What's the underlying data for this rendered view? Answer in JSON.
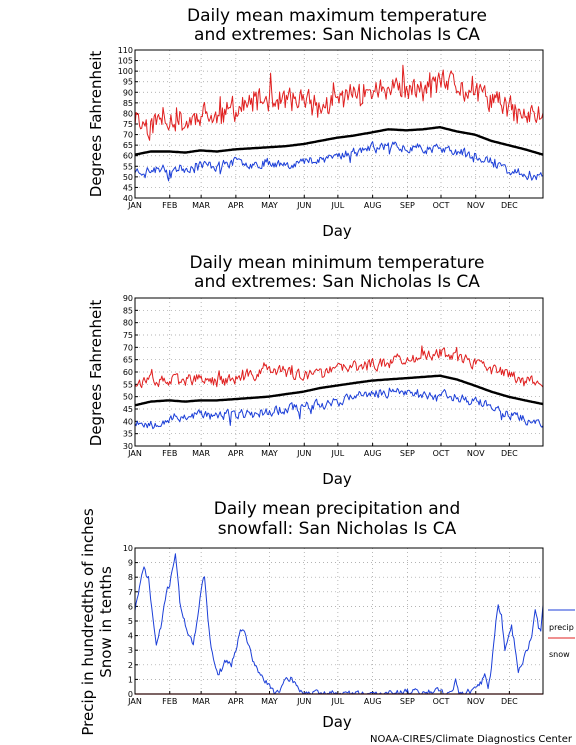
{
  "credit": "NOAA-CIRES/Climate Diagnostics Center",
  "months": [
    "JAN",
    "FEB",
    "MAR",
    "APR",
    "MAY",
    "JUN",
    "JUL",
    "AUG",
    "SEP",
    "OCT",
    "NOV",
    "DEC"
  ],
  "colors": {
    "mean": "#000000",
    "max_extreme": "#e02020",
    "min_extreme": "#1c3fd8",
    "precip": "#1c3fd8",
    "snow": "#e02020",
    "grid": "#9a9a9a"
  },
  "chart_data": [
    {
      "type": "line",
      "title_line1": "Daily mean maximum temperature",
      "title_line2": "and extremes: San Nicholas Is CA",
      "xlabel": "Day",
      "ylabel": "Degrees Fahrenheit",
      "ylim": [
        40,
        110
      ],
      "yticks": [
        40,
        45,
        50,
        55,
        60,
        65,
        70,
        75,
        80,
        85,
        90,
        95,
        100,
        105,
        110
      ],
      "grid": true,
      "series": [
        {
          "key": "high",
          "kind": "extreme-high",
          "anchors": [
            [
              1,
              77
            ],
            [
              15,
              74
            ],
            [
              31,
              79
            ],
            [
              46,
              75
            ],
            [
              59,
              80
            ],
            [
              74,
              77
            ],
            [
              90,
              82
            ],
            [
              105,
              84
            ],
            [
              120,
              87
            ],
            [
              135,
              86
            ],
            [
              151,
              86
            ],
            [
              166,
              82
            ],
            [
              181,
              86
            ],
            [
              196,
              89
            ],
            [
              212,
              91
            ],
            [
              227,
              91
            ],
            [
              243,
              90
            ],
            [
              258,
              91
            ],
            [
              273,
              94
            ],
            [
              288,
              93
            ],
            [
              304,
              88
            ],
            [
              319,
              87
            ],
            [
              334,
              82
            ],
            [
              349,
              78
            ],
            [
              365,
              80
            ]
          ],
          "amp": 5.5,
          "seed": 11
        },
        {
          "key": "mean",
          "kind": "mean",
          "anchors": [
            [
              1,
              60.5
            ],
            [
              15,
              62
            ],
            [
              31,
              62
            ],
            [
              46,
              61.5
            ],
            [
              59,
              62.5
            ],
            [
              74,
              62
            ],
            [
              90,
              63
            ],
            [
              105,
              63.5
            ],
            [
              120,
              64
            ],
            [
              135,
              64.5
            ],
            [
              151,
              65.5
            ],
            [
              166,
              67
            ],
            [
              181,
              68.5
            ],
            [
              196,
              69.5
            ],
            [
              212,
              71
            ],
            [
              227,
              72.5
            ],
            [
              243,
              72
            ],
            [
              258,
              72.5
            ],
            [
              273,
              73.5
            ],
            [
              288,
              71.5
            ],
            [
              304,
              70
            ],
            [
              319,
              67
            ],
            [
              334,
              65
            ],
            [
              349,
              63
            ],
            [
              365,
              60.5
            ]
          ],
          "amp": 0,
          "seed": 0
        },
        {
          "key": "low",
          "kind": "extreme-low",
          "anchors": [
            [
              1,
              53
            ],
            [
              15,
              53
            ],
            [
              31,
              54
            ],
            [
              46,
              54
            ],
            [
              59,
              56
            ],
            [
              74,
              55
            ],
            [
              90,
              57
            ],
            [
              105,
              56
            ],
            [
              120,
              57
            ],
            [
              135,
              56
            ],
            [
              151,
              57
            ],
            [
              166,
              59
            ],
            [
              181,
              60
            ],
            [
              196,
              62
            ],
            [
              212,
              64
            ],
            [
              227,
              65
            ],
            [
              243,
              64
            ],
            [
              258,
              64
            ],
            [
              273,
              63
            ],
            [
              288,
              62
            ],
            [
              304,
              60
            ],
            [
              319,
              57
            ],
            [
              334,
              53
            ],
            [
              349,
              51
            ],
            [
              365,
              52
            ]
          ],
          "amp": 2.0,
          "seed": 23
        }
      ]
    },
    {
      "type": "line",
      "title_line1": "Daily mean minimum temperature",
      "title_line2": "and extremes: San Nicholas Is CA",
      "xlabel": "Day",
      "ylabel": "Degrees Fahrenheit",
      "ylim": [
        30,
        90
      ],
      "yticks": [
        30,
        35,
        40,
        45,
        50,
        55,
        60,
        65,
        70,
        75,
        80,
        85,
        90
      ],
      "grid": true,
      "series": [
        {
          "key": "high",
          "kind": "extreme-high",
          "anchors": [
            [
              1,
              56
            ],
            [
              15,
              56
            ],
            [
              31,
              56
            ],
            [
              46,
              57
            ],
            [
              59,
              57
            ],
            [
              74,
              56
            ],
            [
              90,
              57
            ],
            [
              105,
              58
            ],
            [
              120,
              62
            ],
            [
              135,
              60
            ],
            [
              151,
              58
            ],
            [
              166,
              59
            ],
            [
              181,
              61
            ],
            [
              196,
              62
            ],
            [
              212,
              63
            ],
            [
              227,
              64
            ],
            [
              243,
              65
            ],
            [
              258,
              66
            ],
            [
              273,
              68
            ],
            [
              288,
              66
            ],
            [
              304,
              63
            ],
            [
              319,
              61
            ],
            [
              334,
              59
            ],
            [
              349,
              57
            ],
            [
              365,
              55
            ]
          ],
          "amp": 2.2,
          "seed": 37
        },
        {
          "key": "mean",
          "kind": "mean",
          "anchors": [
            [
              1,
              46.5
            ],
            [
              15,
              48
            ],
            [
              31,
              48.5
            ],
            [
              46,
              48
            ],
            [
              59,
              48.5
            ],
            [
              74,
              48.5
            ],
            [
              90,
              49
            ],
            [
              105,
              49.5
            ],
            [
              120,
              50
            ],
            [
              135,
              51
            ],
            [
              151,
              52
            ],
            [
              166,
              53.5
            ],
            [
              181,
              54.5
            ],
            [
              196,
              55.5
            ],
            [
              212,
              56.5
            ],
            [
              227,
              57
            ],
            [
              243,
              57.5
            ],
            [
              258,
              58
            ],
            [
              273,
              58.5
            ],
            [
              288,
              57
            ],
            [
              304,
              54.5
            ],
            [
              319,
              52
            ],
            [
              334,
              50
            ],
            [
              349,
              48.5
            ],
            [
              365,
              47
            ]
          ],
          "amp": 0,
          "seed": 0
        },
        {
          "key": "low",
          "kind": "extreme-low",
          "anchors": [
            [
              1,
              40
            ],
            [
              15,
              39
            ],
            [
              31,
              41
            ],
            [
              46,
              42
            ],
            [
              59,
              43
            ],
            [
              74,
              42
            ],
            [
              90,
              43
            ],
            [
              105,
              43
            ],
            [
              120,
              44
            ],
            [
              135,
              45
            ],
            [
              151,
              46
            ],
            [
              166,
              47
            ],
            [
              181,
              48
            ],
            [
              196,
              50
            ],
            [
              212,
              51
            ],
            [
              227,
              52
            ],
            [
              243,
              52
            ],
            [
              258,
              51
            ],
            [
              273,
              51
            ],
            [
              288,
              50
            ],
            [
              304,
              48
            ],
            [
              319,
              46
            ],
            [
              334,
              43
            ],
            [
              349,
              41
            ],
            [
              365,
              38
            ]
          ],
          "amp": 1.8,
          "seed": 53
        }
      ]
    },
    {
      "type": "line",
      "title_line1": "Daily mean precipitation and",
      "title_line2": "snowfall: San Nicholas Is CA",
      "xlabel": "Day",
      "ylabel_line1": "Precip in hundredths of inches",
      "ylabel_line2": "Snow in tenths",
      "ylim": [
        0,
        10
      ],
      "yticks": [
        0,
        1,
        2,
        3,
        4,
        5,
        6,
        7,
        8,
        9,
        10
      ],
      "grid": true,
      "legend": "right",
      "series": [
        {
          "name": "precip",
          "key": "precip",
          "kind": "precip",
          "anchors": [
            [
              1,
              5.8
            ],
            [
              5,
              7.3
            ],
            [
              9,
              8.6
            ],
            [
              13,
              7.9
            ],
            [
              17,
              5.2
            ],
            [
              20,
              3.3
            ],
            [
              24,
              4.5
            ],
            [
              28,
              6.6
            ],
            [
              32,
              7.6
            ],
            [
              37,
              9.7
            ],
            [
              41,
              6.3
            ],
            [
              45,
              5.0
            ],
            [
              49,
              4.1
            ],
            [
              53,
              3.4
            ],
            [
              57,
              5.1
            ],
            [
              61,
              7.8
            ],
            [
              63,
              8.2
            ],
            [
              67,
              4.4
            ],
            [
              71,
              2.3
            ],
            [
              75,
              1.4
            ],
            [
              79,
              1.8
            ],
            [
              83,
              2.4
            ],
            [
              87,
              2.0
            ],
            [
              91,
              3.1
            ],
            [
              95,
              4.6
            ],
            [
              99,
              4.1
            ],
            [
              103,
              3.2
            ],
            [
              107,
              2.1
            ],
            [
              111,
              1.5
            ],
            [
              115,
              1.1
            ],
            [
              119,
              0.7
            ],
            [
              123,
              0.3
            ],
            [
              127,
              0.15
            ],
            [
              131,
              0.4
            ],
            [
              135,
              0.8
            ],
            [
              140,
              1.1
            ],
            [
              145,
              0.6
            ],
            [
              150,
              0.15
            ],
            [
              158,
              0.05
            ],
            [
              170,
              0.0
            ],
            [
              180,
              0.05
            ],
            [
              200,
              0.0
            ],
            [
              220,
              0.0
            ],
            [
              235,
              0.08
            ],
            [
              245,
              0.15
            ],
            [
              250,
              0.4
            ],
            [
              253,
              0.05
            ],
            [
              260,
              0.05
            ],
            [
              265,
              0.2
            ],
            [
              270,
              0.5
            ],
            [
              273,
              0.3
            ],
            [
              277,
              0.05
            ],
            [
              282,
              0.05
            ],
            [
              287,
              0.9
            ],
            [
              290,
              0.1
            ],
            [
              295,
              0.1
            ],
            [
              300,
              0.15
            ],
            [
              305,
              0.3
            ],
            [
              310,
              0.8
            ],
            [
              313,
              1.3
            ],
            [
              316,
              0.5
            ],
            [
              319,
              1.8
            ],
            [
              322,
              4.2
            ],
            [
              325,
              6.2
            ],
            [
              328,
              5.4
            ],
            [
              331,
              3.0
            ],
            [
              334,
              3.7
            ],
            [
              337,
              4.5
            ],
            [
              340,
              3.3
            ],
            [
              343,
              1.7
            ],
            [
              346,
              2.1
            ],
            [
              349,
              2.8
            ],
            [
              352,
              3.1
            ],
            [
              355,
              4.0
            ],
            [
              358,
              5.8
            ],
            [
              361,
              4.6
            ],
            [
              363,
              4.2
            ],
            [
              365,
              6.1
            ]
          ],
          "amp": 0.2,
          "seed": 71
        },
        {
          "name": "snow",
          "key": "snow",
          "kind": "snow",
          "anchors": [
            [
              1,
              0
            ],
            [
              365,
              0
            ]
          ],
          "amp": 0,
          "seed": 0
        }
      ]
    }
  ]
}
